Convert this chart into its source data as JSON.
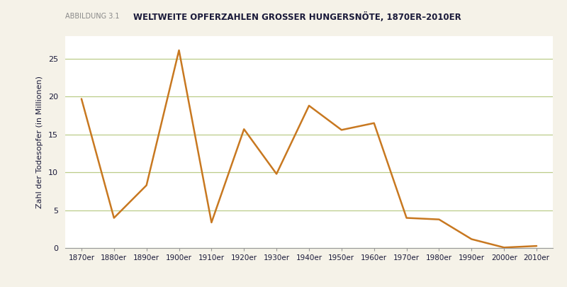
{
  "title": "WELTWEITE OPFERZAHLEN GROSSER HUNGERSNÖTE, 1870ER–2010ER",
  "subtitle_label": "ABBILDUNG 3.1",
  "ylabel": "Zahl der Todesopfer (in Millionen)",
  "x_labels": [
    "1870er",
    "1880er",
    "1890er",
    "1900er",
    "1910er",
    "1920er",
    "1930er",
    "1940er",
    "1950er",
    "1960er",
    "1970er",
    "1980er",
    "1990er",
    "2000er",
    "2010er"
  ],
  "x_values": [
    0,
    1,
    2,
    3,
    4,
    5,
    6,
    7,
    8,
    9,
    10,
    11,
    12,
    13,
    14
  ],
  "y_values": [
    19.7,
    4.0,
    8.3,
    26.1,
    3.4,
    15.7,
    9.8,
    18.8,
    15.6,
    16.5,
    4.0,
    3.8,
    1.2,
    0.1,
    0.3
  ],
  "line_color": "#C87820",
  "grid_color": "#BBCC88",
  "background_color": "#FFFFFF",
  "figure_bg": "#F5F2E8",
  "axis_color": "#999999",
  "title_color": "#1A1A3A",
  "abbildung_color": "#888888",
  "ylabel_color": "#1A1A3A",
  "tick_label_color": "#1A1A3A",
  "ylim": [
    0,
    28
  ],
  "yticks": [
    0,
    5,
    10,
    15,
    20,
    25
  ],
  "figsize": [
    8.0,
    4.05
  ],
  "dpi": 100
}
